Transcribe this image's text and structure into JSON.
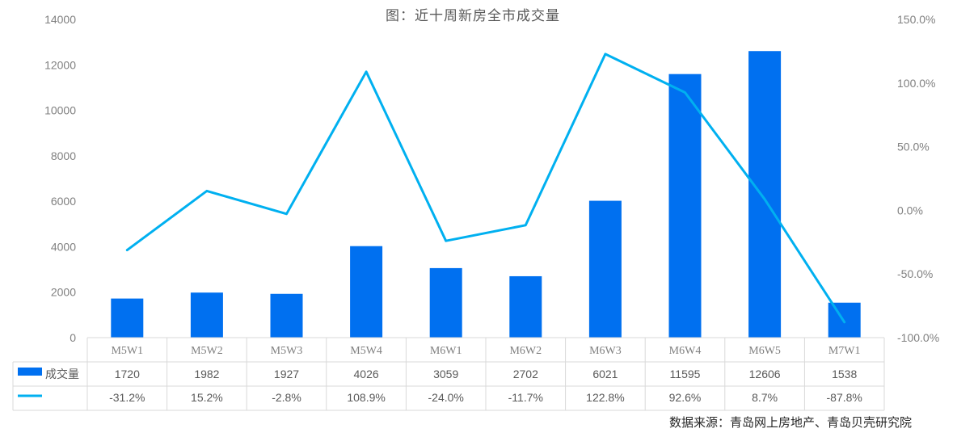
{
  "chart_data": {
    "type": "bar",
    "title": "图：近十周新房全市成交量",
    "categories": [
      "M5W1",
      "M5W2",
      "M5W3",
      "M5W4",
      "M6W1",
      "M6W2",
      "M6W3",
      "M6W4",
      "M6W5",
      "M7W1"
    ],
    "series": [
      {
        "name": "成交量",
        "type": "bar",
        "axis": "left",
        "color": "#0070F0",
        "values": [
          1720,
          1982,
          1927,
          4026,
          3059,
          2702,
          6021,
          11595,
          12606,
          1538
        ]
      },
      {
        "type": "line",
        "axis": "right",
        "color": "#00B0F0",
        "values": [
          -31.2,
          15.2,
          -2.8,
          108.9,
          -24.0,
          -11.7,
          122.8,
          92.6,
          8.7,
          -87.8
        ],
        "labels": [
          "-31.2%",
          "15.2%",
          "-2.8%",
          "108.9%",
          "-24.0%",
          "-11.7%",
          "122.8%",
          "92.6%",
          "8.7%",
          "-87.8%"
        ]
      }
    ],
    "ylim_left": [
      0,
      14000
    ],
    "yticks_left": [
      "0",
      "2000",
      "4000",
      "6000",
      "8000",
      "10000",
      "12000",
      "14000"
    ],
    "ylim_right": [
      -100,
      150
    ],
    "yticks_right": [
      "-100.0%",
      "-50.0%",
      "0.0%",
      "50.0%",
      "100.0%",
      "150.0%"
    ],
    "grid": false,
    "data_table": true,
    "bar_value_labels": [
      "1720",
      "1982",
      "1927",
      "4026",
      "3059",
      "2702",
      "6021",
      "11595",
      "12606",
      "1538"
    ]
  },
  "source_note": "数据来源：青岛网上房地产、青岛贝壳研究院",
  "colors": {
    "bar": "#0070F0",
    "line": "#00B0F0",
    "table_border": "#D9D9D9",
    "text": "#595959"
  }
}
